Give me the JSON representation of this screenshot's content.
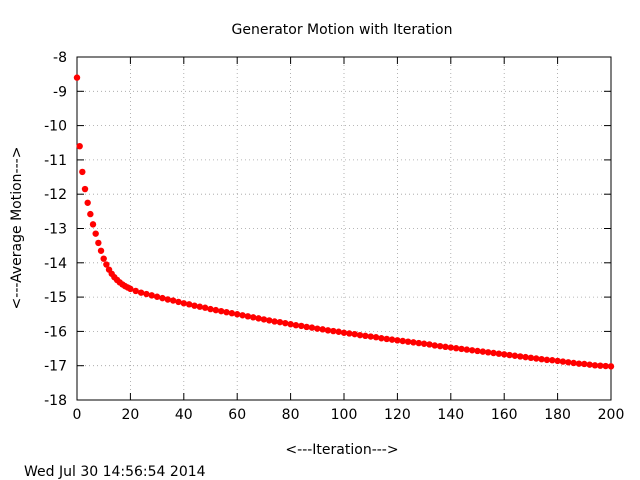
{
  "chart_data": {
    "type": "scatter",
    "title": "Generator Motion with Iteration",
    "xlabel": "<---Iteration--->",
    "ylabel": "<---Average Motion--->",
    "xlim": [
      0,
      200
    ],
    "ylim": [
      -18,
      -8
    ],
    "xticks": [
      0,
      20,
      40,
      60,
      80,
      100,
      120,
      140,
      160,
      180,
      200
    ],
    "yticks": [
      -8,
      -9,
      -10,
      -11,
      -12,
      -13,
      -14,
      -15,
      -16,
      -17,
      -18
    ],
    "grid": true,
    "point_color": "#ff0000",
    "timestamp": "Wed Jul 30 14:56:54 2014",
    "series": [
      {
        "x": [
          0,
          1,
          2,
          3,
          4,
          5,
          6,
          7,
          8,
          9,
          10,
          11,
          12,
          13,
          14,
          15,
          16,
          17,
          18,
          19,
          20,
          22,
          24,
          26,
          28,
          30,
          32,
          34,
          36,
          38,
          40,
          42,
          44,
          46,
          48,
          50,
          52,
          54,
          56,
          58,
          60,
          62,
          64,
          66,
          68,
          70,
          72,
          74,
          76,
          78,
          80,
          82,
          84,
          86,
          88,
          90,
          92,
          94,
          96,
          98,
          100,
          102,
          104,
          106,
          108,
          110,
          112,
          114,
          116,
          118,
          120,
          122,
          124,
          126,
          128,
          130,
          132,
          134,
          136,
          138,
          140,
          142,
          144,
          146,
          148,
          150,
          152,
          154,
          156,
          158,
          160,
          162,
          164,
          166,
          168,
          170,
          172,
          174,
          176,
          178,
          180,
          182,
          184,
          186,
          188,
          190,
          192,
          194,
          196,
          198,
          200
        ],
        "y": [
          -8.6,
          -10.6,
          -11.35,
          -11.85,
          -12.25,
          -12.58,
          -12.88,
          -13.15,
          -13.42,
          -13.65,
          -13.88,
          -14.05,
          -14.2,
          -14.32,
          -14.42,
          -14.5,
          -14.57,
          -14.63,
          -14.68,
          -14.72,
          -14.76,
          -14.82,
          -14.87,
          -14.91,
          -14.95,
          -14.99,
          -15.03,
          -15.07,
          -15.1,
          -15.14,
          -15.18,
          -15.21,
          -15.25,
          -15.28,
          -15.31,
          -15.35,
          -15.38,
          -15.41,
          -15.44,
          -15.47,
          -15.5,
          -15.53,
          -15.56,
          -15.59,
          -15.62,
          -15.65,
          -15.68,
          -15.71,
          -15.73,
          -15.76,
          -15.79,
          -15.82,
          -15.84,
          -15.87,
          -15.89,
          -15.92,
          -15.94,
          -15.97,
          -15.99,
          -16.01,
          -16.04,
          -16.06,
          -16.08,
          -16.11,
          -16.13,
          -16.15,
          -16.17,
          -16.2,
          -16.22,
          -16.24,
          -16.26,
          -16.28,
          -16.3,
          -16.32,
          -16.34,
          -16.36,
          -16.38,
          -16.41,
          -16.43,
          -16.45,
          -16.47,
          -16.49,
          -16.51,
          -16.53,
          -16.55,
          -16.57,
          -16.59,
          -16.61,
          -16.63,
          -16.65,
          -16.67,
          -16.69,
          -16.71,
          -16.73,
          -16.75,
          -16.77,
          -16.79,
          -16.81,
          -16.83,
          -16.84,
          -16.86,
          -16.88,
          -16.9,
          -16.92,
          -16.94,
          -16.95,
          -16.97,
          -16.99,
          -17.0,
          -17.01,
          -17.02
        ]
      }
    ]
  }
}
